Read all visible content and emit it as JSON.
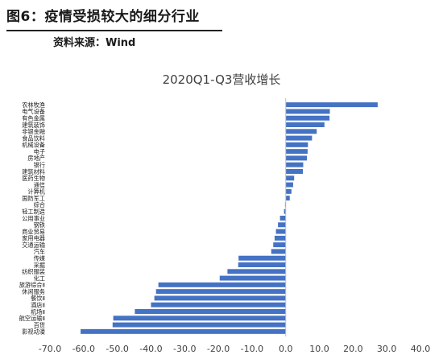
{
  "header": {
    "figure_label": "图6：",
    "figure_title": "疫情受损较大的细分行业",
    "source": "资料来源：Wind"
  },
  "colors": {
    "bar": "#4472C4",
    "axis": "#bfbfbf",
    "text": "#1a1a1a"
  },
  "chart_data": {
    "type": "bar",
    "orientation": "horizontal",
    "title": "2020Q1-Q3营收增长",
    "xlabel": "",
    "ylabel": "",
    "xlim": [
      -70,
      40
    ],
    "xticks": [
      -70,
      -60,
      -50,
      -40,
      -30,
      -20,
      -10,
      0,
      10,
      20,
      30,
      40
    ],
    "xtick_labels": [
      "-70.0",
      "-60.0",
      "-50.0",
      "-40.0",
      "-30.0",
      "-20.0",
      "-10.0",
      "0.0",
      "10.0",
      "20.0",
      "30.0",
      "40.0"
    ],
    "grid": false,
    "legend": "none",
    "categories": [
      "农林牧渔",
      "电气设备",
      "有色金属",
      "建筑装饰",
      "非银金融",
      "食品饮料",
      "机械设备",
      "电子",
      "房地产",
      "银行",
      "建筑材料",
      "医药生物",
      "通信",
      "计算机",
      "国防军工",
      "综合",
      "轻工制造",
      "公用事业",
      "钢铁",
      "商业贸易",
      "家用电器",
      "交通运输",
      "汽车",
      "传媒",
      "采掘",
      "纺织服装",
      "化工",
      "旅游综合Ⅱ",
      "休闲服务",
      "餐饮Ⅱ",
      "酒店Ⅱ",
      "机场Ⅱ",
      "航空运输Ⅱ",
      "百货",
      "影视动漫"
    ],
    "values": [
      27.3,
      13.1,
      13.0,
      11.5,
      9.2,
      7.8,
      6.6,
      6.5,
      6.3,
      5.2,
      5.1,
      2.5,
      2.2,
      1.7,
      1.2,
      -0.2,
      -0.5,
      -1.7,
      -2.3,
      -2.9,
      -3.3,
      -3.7,
      -4.3,
      -14.0,
      -14.1,
      -17.3,
      -19.6,
      -37.8,
      -38.5,
      -39.0,
      -40.0,
      -44.8,
      -51.2,
      -51.4,
      -60.9
    ]
  }
}
